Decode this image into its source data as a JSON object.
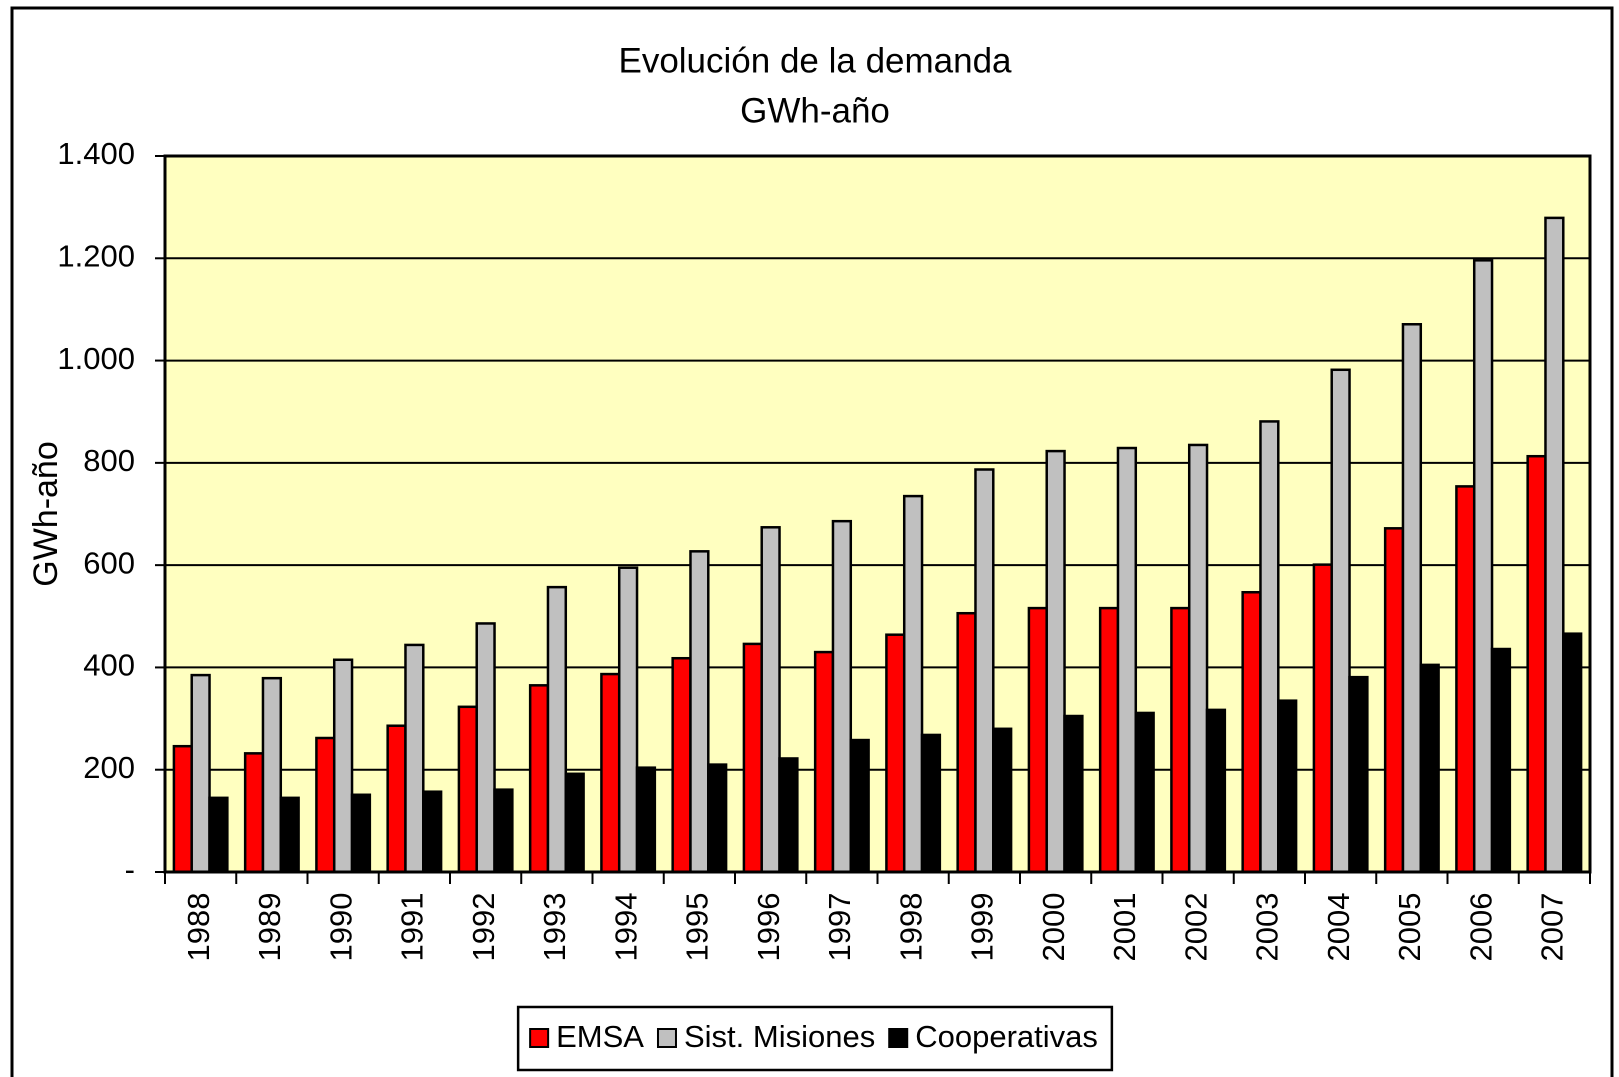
{
  "chart_data": {
    "type": "bar",
    "title": "Evolución de la demanda",
    "subtitle": "GWh-año",
    "y_label": "GWh-año",
    "categories": [
      "1988",
      "1989",
      "1990",
      "1991",
      "1992",
      "1993",
      "1994",
      "1995",
      "1996",
      "1997",
      "1998",
      "1999",
      "2000",
      "2001",
      "2002",
      "2003",
      "2004",
      "2005",
      "2006",
      "2007"
    ],
    "series": [
      {
        "name": "EMSA",
        "color": "#ff0000",
        "values": [
          246,
          232,
          262,
          286,
          323,
          365,
          387,
          418,
          446,
          430,
          464,
          506,
          516,
          516,
          516,
          547,
          601,
          672,
          754,
          813
        ]
      },
      {
        "name": "Sist. Misiones",
        "color": "#c0c0c0",
        "values": [
          385,
          379,
          415,
          444,
          486,
          557,
          595,
          627,
          674,
          686,
          735,
          787,
          823,
          829,
          835,
          881,
          982,
          1071,
          1196,
          1279
        ]
      },
      {
        "name": "Cooperativas",
        "color": "#000000",
        "values": [
          145,
          145,
          151,
          157,
          161,
          192,
          204,
          210,
          222,
          258,
          268,
          280,
          305,
          311,
          317,
          335,
          381,
          405,
          436,
          466
        ]
      }
    ],
    "ylim": [
      0,
      1400
    ],
    "yticks": [
      {
        "value": 0,
        "label": "-"
      },
      200,
      400,
      600,
      800,
      {
        "value": 1000,
        "label": "1.000"
      },
      {
        "value": 1200,
        "label": "1.200"
      },
      {
        "value": 1400,
        "label": "1.400"
      }
    ],
    "grid": true,
    "legend": "bottom",
    "background": "#ffffc0"
  }
}
